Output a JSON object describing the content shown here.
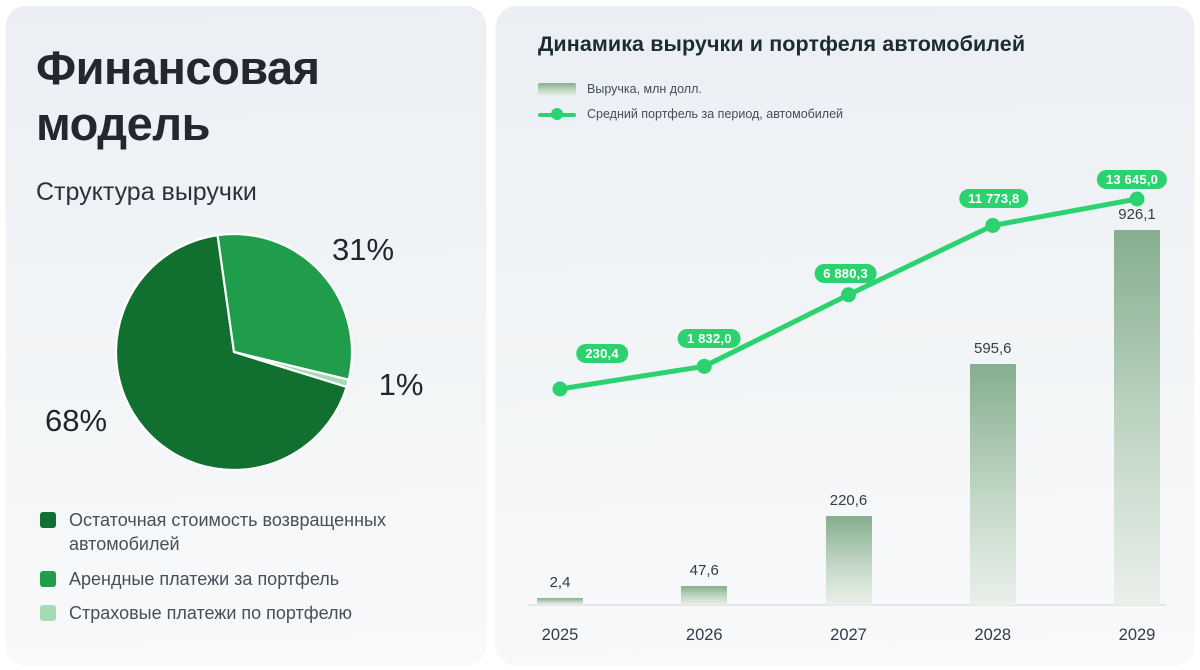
{
  "slide": {
    "left_panel": {
      "title": "Финансовая модель",
      "section_title": "Структура выручки"
    },
    "right_panel": {
      "title": "Динамика выручки и портфеля автомобилей"
    }
  },
  "colors": {
    "pie_dark": "#117030",
    "pie_medium": "#1f9d4a",
    "pie_light": "#a5dab2",
    "line_green": "#2bd26f",
    "bar_top": "#86ae8f",
    "bar_mid": "#c5d9c8",
    "bar_bottom": "#eaf0eb",
    "badge_text": "#ffffff"
  },
  "chart_data": [
    {
      "id": "revenue-structure-pie",
      "type": "pie",
      "title": "Структура выручки",
      "start_angle_deg": -8,
      "draw_order": [
        1,
        2,
        0
      ],
      "slices": [
        {
          "label": "Остаточная стоимость возвращенных автомобилей",
          "pct": 68,
          "pct_label": "68%",
          "color_key": "pie_dark"
        },
        {
          "label": "Арендные платежи за портфель",
          "pct": 31,
          "pct_label": "31%",
          "color_key": "pie_medium"
        },
        {
          "label": "Страховые платежи по портфелю",
          "pct": 1,
          "pct_label": "1%",
          "color_key": "pie_light"
        }
      ]
    },
    {
      "id": "revenue-portfolio-combo",
      "type": "combo",
      "title": "Динамика выручки и портфеля автомобилей",
      "categories": [
        "2025",
        "2026",
        "2027",
        "2028",
        "2029"
      ],
      "series": [
        {
          "name": "Выручка, млн долл.",
          "type": "bar",
          "values": [
            2.4,
            47.6,
            220.6,
            595.6,
            926.1
          ],
          "value_labels": [
            "2,4",
            "47,6",
            "220,6",
            "595,6",
            "926,1"
          ]
        },
        {
          "name": "Средний портфель за период, автомобилей",
          "type": "line",
          "values": [
            230.4,
            1832.0,
            6880.3,
            11773.8,
            13645.0
          ],
          "value_labels": [
            "230,4",
            "1 832,0",
            "6 880,3",
            "11 773,8",
            "13 645,0"
          ]
        }
      ],
      "legend_position": "top-left",
      "grid": false
    }
  ]
}
